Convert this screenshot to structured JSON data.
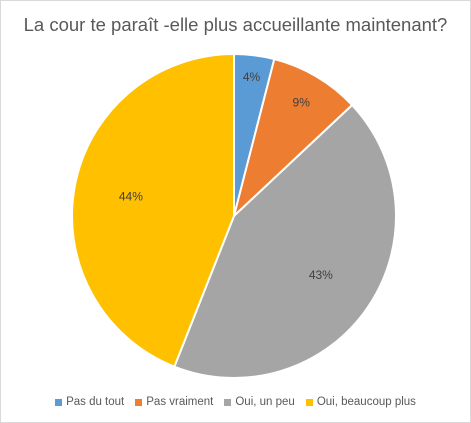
{
  "chart_data": {
    "type": "pie",
    "title": "La cour te paraît -elle plus accueillante maintenant?",
    "slices": [
      {
        "label": "Pas du tout",
        "value": 4,
        "display": "4%",
        "color": "#5B9BD5"
      },
      {
        "label": "Pas vraiment",
        "value": 9,
        "display": "9%",
        "color": "#ED7D31"
      },
      {
        "label": "Oui, un peu",
        "value": 43,
        "display": "43%",
        "color": "#A5A5A5"
      },
      {
        "label": "Oui, beaucoup plus",
        "value": 44,
        "display": "44%",
        "color": "#FFC000"
      }
    ],
    "start_angle": "12 o'clock",
    "direction": "clockwise",
    "data_labels": "inside, percent",
    "legend": "bottom"
  }
}
